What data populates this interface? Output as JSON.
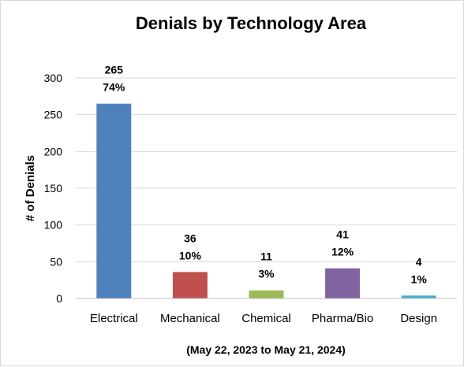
{
  "chart_data": {
    "type": "bar",
    "title": "Denials by Technology Area",
    "subtitle": "(May 22, 2023 to May 21, 2024)",
    "xlabel": "",
    "ylabel": "# of Denials",
    "ylim": [
      0,
      300
    ],
    "yticks": [
      0,
      50,
      100,
      150,
      200,
      250,
      300
    ],
    "grid": true,
    "legend": "none",
    "categories": [
      "Electrical",
      "Mechanical",
      "Chemical",
      "Pharma/Bio",
      "Design"
    ],
    "values": [
      265,
      36,
      11,
      41,
      4
    ],
    "percent_labels": [
      "74%",
      "10%",
      "3%",
      "12%",
      "1%"
    ],
    "colors": [
      "#4f81bd",
      "#c0504d",
      "#9bbb59",
      "#8064a2",
      "#4bacc6"
    ]
  }
}
